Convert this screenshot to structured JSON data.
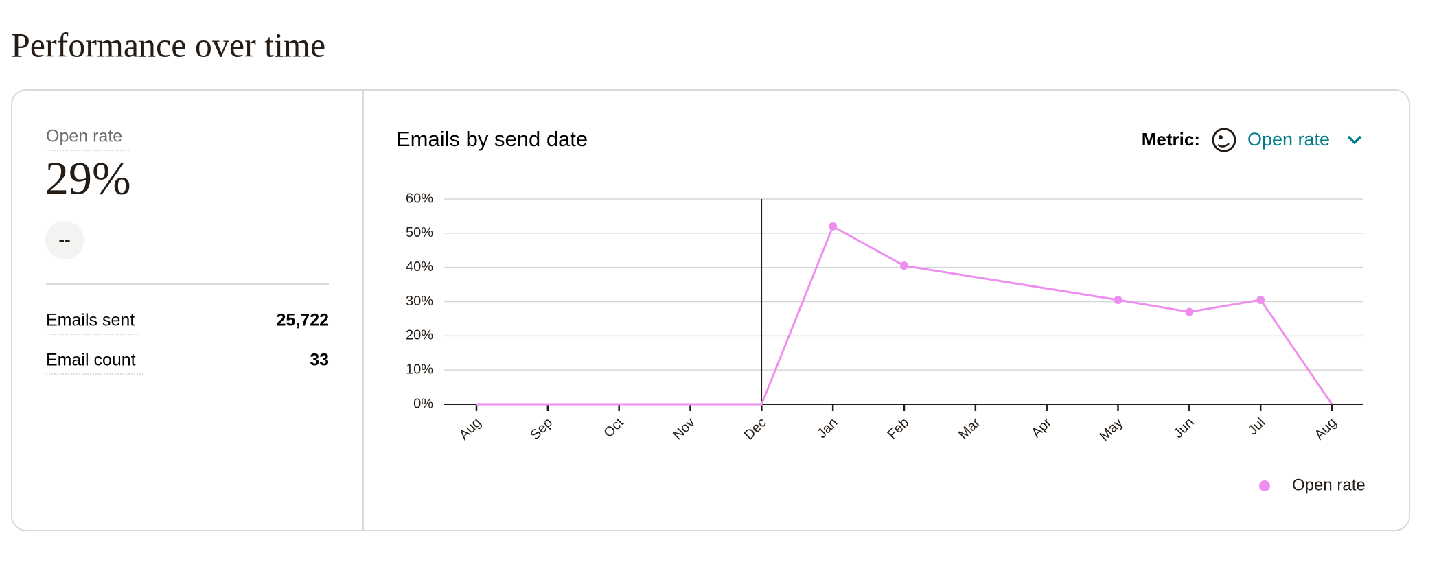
{
  "page_title": "Performance over time",
  "summary": {
    "label": "Open rate",
    "value": "29%",
    "change": "--",
    "stats": [
      {
        "label": "Emails sent",
        "value": "25,722"
      },
      {
        "label": "Email count",
        "value": "33"
      }
    ]
  },
  "metric_label": "Metric:",
  "metric_value": "Open rate",
  "chart_data": {
    "type": "line",
    "title": "Emails by send date",
    "categories": [
      "Aug",
      "Sep",
      "Oct",
      "Nov",
      "Dec",
      "Jan",
      "Feb",
      "Mar",
      "Apr",
      "May",
      "Jun",
      "Jul",
      "Aug"
    ],
    "series": [
      {
        "name": "Open rate",
        "color": "#ee8ff0",
        "x": [
          "Aug",
          "Sep",
          "Oct",
          "Nov",
          "Dec",
          "Jan",
          "Feb",
          "May",
          "Jun",
          "Jul",
          "Aug"
        ],
        "values": [
          0,
          0,
          0,
          0,
          0,
          52,
          40.5,
          30.5,
          27,
          30.5,
          0
        ]
      }
    ],
    "ylim": [
      0,
      60
    ],
    "yticks": [
      {
        "value": 0,
        "label": "0%"
      },
      {
        "value": 10,
        "label": "10%"
      },
      {
        "value": 20,
        "label": "20%"
      },
      {
        "value": 30,
        "label": "30%"
      },
      {
        "value": 40,
        "label": "40%"
      },
      {
        "value": 50,
        "label": "50%"
      },
      {
        "value": 60,
        "label": "60%"
      }
    ],
    "grid": true,
    "legend": "bottom-right"
  }
}
